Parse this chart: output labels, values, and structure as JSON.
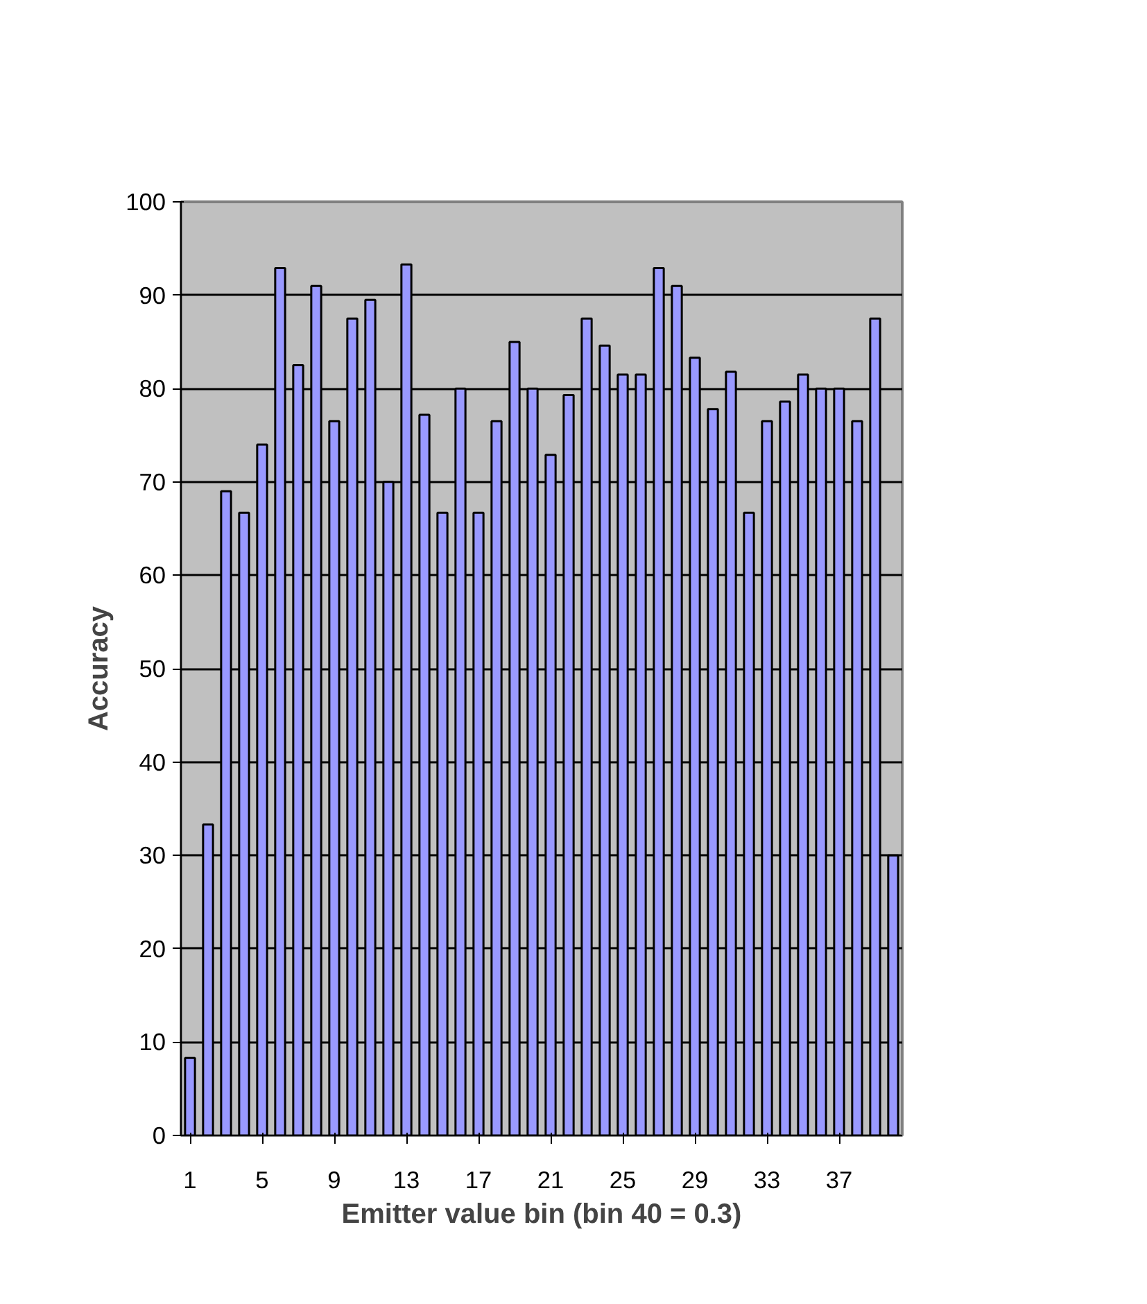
{
  "chart_data": {
    "type": "bar",
    "xlabel": "Emitter value bin (bin 40 = 0.3)",
    "ylabel": "Accuracy",
    "categories": [
      "1",
      null,
      null,
      null,
      "5",
      null,
      null,
      null,
      "9",
      null,
      null,
      null,
      "13",
      null,
      null,
      null,
      "17",
      null,
      null,
      null,
      "21",
      null,
      null,
      null,
      "25",
      null,
      null,
      null,
      "29",
      null,
      null,
      null,
      "33",
      null,
      null,
      null,
      "37",
      null,
      null,
      null
    ],
    "values": [
      8.3,
      33.3,
      69,
      66.7,
      74,
      92.9,
      82.5,
      91,
      76.5,
      87.5,
      89.5,
      70,
      93.3,
      77.2,
      66.7,
      80,
      66.7,
      76.5,
      85,
      80,
      72.9,
      79.3,
      87.5,
      84.6,
      81.5,
      81.5,
      92.9,
      91,
      83.3,
      77.8,
      81.8,
      66.7,
      76.5,
      78.6,
      81.5,
      80,
      80,
      76.5,
      87.5,
      30
    ],
    "color": "#9999ff",
    "ylim": [
      0,
      100
    ],
    "yticks": [
      0,
      10,
      20,
      30,
      40,
      50,
      60,
      70,
      80,
      90,
      100
    ],
    "grid": "y"
  }
}
